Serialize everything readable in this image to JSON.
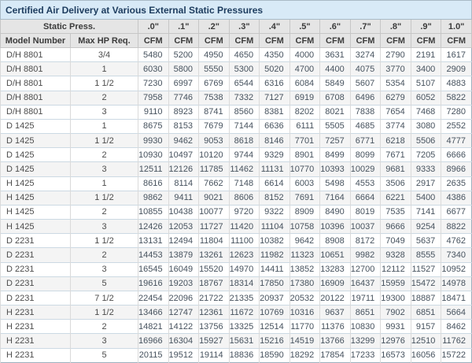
{
  "colors": {
    "title_bg": "#d8eaf7",
    "title_text": "#1d3c5e",
    "header_bg": "#e5e5e5",
    "row_alt_bg": "#f4f4f4",
    "border_outer": "#9db0be"
  },
  "chart_data": {
    "type": "table",
    "title": "Certified Air Delivery at Various External Static Pressures",
    "header": {
      "static_press_label": "Static Press.",
      "pressures": [
        ".0\"",
        ".1\"",
        ".2\"",
        ".3\"",
        ".4\"",
        ".5\"",
        ".6\"",
        ".7\"",
        ".8\"",
        ".9\"",
        "1.0\""
      ],
      "model_label": "Model Number",
      "hp_label": "Max HP Req.",
      "unit_label": "CFM"
    },
    "rows": [
      {
        "model": "D/H 8801",
        "hp": "3/4",
        "cfm": [
          5480,
          5200,
          4950,
          4650,
          4350,
          4000,
          3631,
          3274,
          2790,
          2191,
          1617
        ]
      },
      {
        "model": "D/H 8801",
        "hp": "1",
        "cfm": [
          6030,
          5800,
          5550,
          5300,
          5020,
          4700,
          4400,
          4075,
          3770,
          3400,
          2909
        ]
      },
      {
        "model": "D/H 8801",
        "hp": "1 1/2",
        "cfm": [
          7230,
          6997,
          6769,
          6544,
          6316,
          6084,
          5849,
          5607,
          5354,
          5107,
          4883
        ]
      },
      {
        "model": "D/H 8801",
        "hp": "2",
        "cfm": [
          7958,
          7746,
          7538,
          7332,
          7127,
          6919,
          6708,
          6496,
          6279,
          6052,
          5822
        ]
      },
      {
        "model": "D/H 8801",
        "hp": "3",
        "cfm": [
          9110,
          8923,
          8741,
          8560,
          8381,
          8202,
          8021,
          7838,
          7654,
          7468,
          7280
        ]
      },
      {
        "model": "D 1425",
        "hp": "1",
        "cfm": [
          8675,
          8153,
          7679,
          7144,
          6636,
          6111,
          5505,
          4685,
          3774,
          3080,
          2552
        ]
      },
      {
        "model": "D 1425",
        "hp": "1 1/2",
        "cfm": [
          9930,
          9462,
          9053,
          8618,
          8146,
          7701,
          7257,
          6771,
          6218,
          5506,
          4777
        ]
      },
      {
        "model": "D 1425",
        "hp": "2",
        "cfm": [
          10930,
          10497,
          10120,
          9744,
          9329,
          8901,
          8499,
          8099,
          7671,
          7205,
          6666
        ]
      },
      {
        "model": "D 1425",
        "hp": "3",
        "cfm": [
          12511,
          12126,
          11785,
          11462,
          11131,
          10770,
          10393,
          10029,
          9681,
          9333,
          8966
        ]
      },
      {
        "model": "H 1425",
        "hp": "1",
        "cfm": [
          8616,
          8114,
          7662,
          7148,
          6614,
          6003,
          5498,
          4553,
          3506,
          2917,
          2635
        ]
      },
      {
        "model": "H 1425",
        "hp": "1 1/2",
        "cfm": [
          9862,
          9411,
          9021,
          8606,
          8152,
          7691,
          7164,
          6664,
          6221,
          5400,
          4386
        ]
      },
      {
        "model": "H 1425",
        "hp": "2",
        "cfm": [
          10855,
          10438,
          10077,
          9720,
          9322,
          8909,
          8490,
          8019,
          7535,
          7141,
          6677
        ]
      },
      {
        "model": "H 1425",
        "hp": "3",
        "cfm": [
          12426,
          12053,
          11727,
          11420,
          11104,
          10758,
          10396,
          10037,
          9666,
          9254,
          8822
        ]
      },
      {
        "model": "D 2231",
        "hp": "1 1/2",
        "cfm": [
          13131,
          12494,
          11804,
          11100,
          10382,
          9642,
          8908,
          8172,
          7049,
          5637,
          4762
        ]
      },
      {
        "model": "D 2231",
        "hp": "2",
        "cfm": [
          14453,
          13879,
          13261,
          12623,
          11982,
          11323,
          10651,
          9982,
          9328,
          8555,
          7340
        ]
      },
      {
        "model": "D 2231",
        "hp": "3",
        "cfm": [
          16545,
          16049,
          15520,
          14970,
          14411,
          13852,
          13283,
          12700,
          12112,
          11527,
          10952
        ]
      },
      {
        "model": "D 2231",
        "hp": "5",
        "cfm": [
          19616,
          19203,
          18767,
          18314,
          17850,
          17380,
          16909,
          16437,
          15959,
          15472,
          14978
        ]
      },
      {
        "model": "D 2231",
        "hp": "7 1/2",
        "cfm": [
          22454,
          22096,
          21722,
          21335,
          20937,
          20532,
          20122,
          19711,
          19300,
          18887,
          18471
        ]
      },
      {
        "model": "H 2231",
        "hp": "1 1/2",
        "cfm": [
          13466,
          12747,
          12361,
          11672,
          10769,
          10316,
          9637,
          8651,
          7902,
          6851,
          5664
        ]
      },
      {
        "model": "H 2231",
        "hp": "2",
        "cfm": [
          14821,
          14122,
          13756,
          13325,
          12514,
          11770,
          11376,
          10830,
          9931,
          9157,
          8462
        ]
      },
      {
        "model": "H 2231",
        "hp": "3",
        "cfm": [
          16966,
          16304,
          15927,
          15631,
          15216,
          14519,
          13766,
          13299,
          12976,
          12510,
          11762
        ]
      },
      {
        "model": "H 2231",
        "hp": "5",
        "cfm": [
          20115,
          19512,
          19114,
          18836,
          18590,
          18292,
          17854,
          17233,
          16573,
          16056,
          15722
        ]
      }
    ]
  }
}
